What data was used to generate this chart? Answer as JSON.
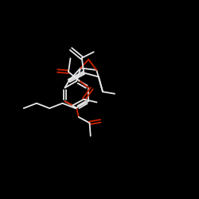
{
  "background_color": "#000000",
  "bond_color": "#e8e8e8",
  "oxygen_color": "#cc2200",
  "figsize": [
    2.5,
    2.5
  ],
  "dpi": 100
}
